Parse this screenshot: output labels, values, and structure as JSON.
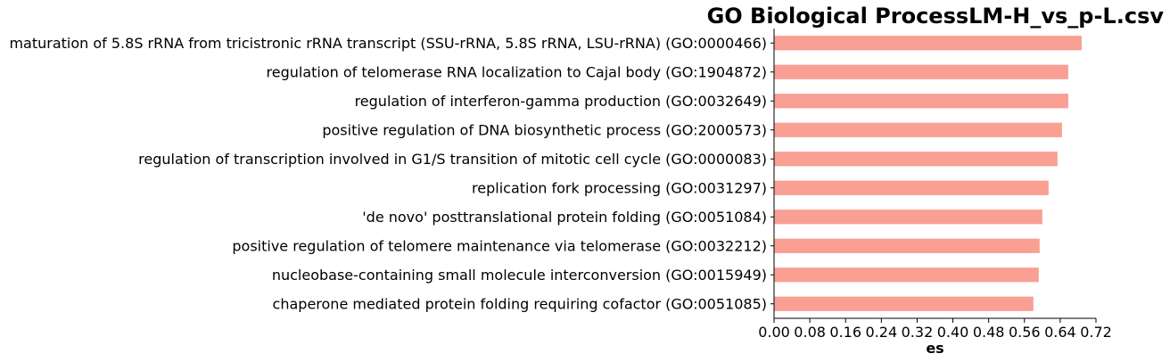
{
  "chart_data": {
    "type": "bar",
    "orientation": "horizontal",
    "title": "GO Biological ProcessLM-H_vs_p-L.csv",
    "xlabel": "es",
    "ylabel": "",
    "xlim": [
      0,
      0.72
    ],
    "xticks": [
      0.0,
      0.08,
      0.16,
      0.24,
      0.32,
      0.4,
      0.48,
      0.56,
      0.64,
      0.72
    ],
    "xtick_labels": [
      "0.00",
      "0.08",
      "0.16",
      "0.24",
      "0.32",
      "0.40",
      "0.48",
      "0.56",
      "0.64",
      "0.72"
    ],
    "bar_color": "#fa9f94",
    "grid": false,
    "categories": [
      "maturation of 5.8S rRNA from tricistronic rRNA transcript (SSU-rRNA, 5.8S rRNA, LSU-rRNA) (GO:0000466)",
      "regulation of telomerase RNA localization to Cajal body (GO:1904872)",
      "regulation of interferon-gamma production (GO:0032649)",
      "positive regulation of DNA biosynthetic process (GO:2000573)",
      "regulation of transcription involved in G1/S transition of mitotic cell cycle (GO:0000083)",
      "replication fork processing (GO:0031297)",
      "'de novo' posttranslational protein folding (GO:0051084)",
      "positive regulation of telomere maintenance via telomerase (GO:0032212)",
      "nucleobase-containing small molecule interconversion (GO:0015949)",
      "chaperone mediated protein folding requiring cofactor (GO:0051085)"
    ],
    "values": [
      0.688,
      0.658,
      0.658,
      0.644,
      0.634,
      0.614,
      0.6,
      0.594,
      0.592,
      0.58
    ]
  }
}
